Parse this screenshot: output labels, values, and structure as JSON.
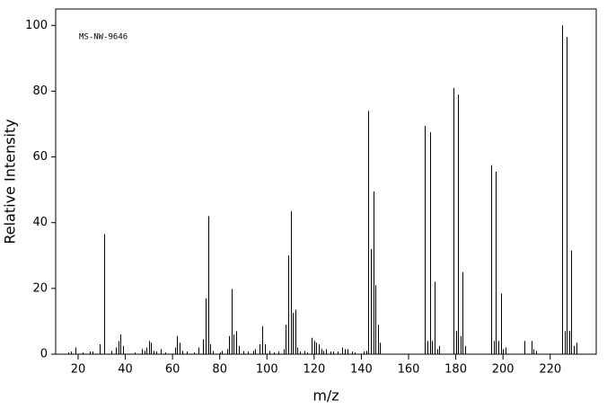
{
  "chart_data": {
    "type": "stem",
    "annotation": "MS-NW-9646",
    "x_label": "m/z",
    "y_label": "Relative Intensity",
    "color": "#000000",
    "xlim": [
      10.5,
      239.5
    ],
    "ylim": [
      0,
      105
    ],
    "xticks": [
      20,
      40,
      60,
      80,
      100,
      120,
      140,
      160,
      180,
      200,
      220
    ],
    "yticks": [
      0,
      20,
      40,
      60,
      80,
      100
    ],
    "x": [
      16,
      17,
      19,
      22,
      25,
      26,
      29,
      31,
      34,
      36,
      37,
      38,
      39,
      44,
      47,
      48,
      49,
      50,
      51,
      52,
      53,
      55,
      57,
      61,
      62,
      63,
      64,
      66,
      69,
      71,
      73,
      74,
      75,
      76,
      77,
      80,
      81,
      83,
      84,
      85,
      86,
      87,
      88,
      90,
      92,
      94,
      95,
      97,
      98,
      99,
      101,
      103,
      105,
      107,
      108,
      109,
      110,
      111,
      112,
      113,
      114,
      116,
      117,
      119,
      120,
      121,
      122,
      123,
      124,
      125,
      127,
      128,
      130,
      132,
      133,
      134,
      136,
      137,
      141,
      142,
      143,
      144,
      145,
      146,
      147,
      148,
      167,
      168,
      169,
      170,
      171,
      172,
      173,
      179,
      180,
      181,
      182,
      183,
      184,
      195,
      196,
      197,
      198,
      199,
      200,
      201,
      209,
      212,
      213,
      214,
      225,
      226,
      227,
      228,
      229,
      230,
      231
    ],
    "values": [
      0.5,
      0.8,
      2,
      0.5,
      0.8,
      0.8,
      3,
      36.5,
      1,
      2,
      4,
      6,
      2.5,
      0.5,
      1.5,
      1,
      2,
      4,
      3.5,
      1,
      0.8,
      1.5,
      0.5,
      2,
      5.5,
      3.5,
      1,
      0.8,
      0.5,
      2,
      4.5,
      17,
      42,
      3,
      1,
      0.5,
      1,
      1.5,
      5.5,
      19.8,
      6,
      7,
      2.5,
      1,
      0.8,
      1,
      1.5,
      3,
      8.5,
      3,
      1,
      0.5,
      0.8,
      1.5,
      9,
      30,
      43.5,
      12.5,
      13.5,
      2,
      0.8,
      1,
      0.5,
      5,
      4,
      3.5,
      3,
      1.5,
      1,
      1.5,
      0.8,
      0.8,
      0.8,
      2,
      1.5,
      1.5,
      0.8,
      0.5,
      0.8,
      1,
      74,
      32,
      49.5,
      21,
      9,
      3.5,
      69.5,
      4,
      67.5,
      4,
      22,
      1.5,
      2.5,
      81,
      7,
      79,
      5.5,
      25,
      2.5,
      57.5,
      4,
      55.5,
      4,
      18.5,
      1.5,
      2,
      4,
      4,
      1.5,
      1,
      100,
      7,
      96.5,
      7,
      31.5,
      2.5,
      3.5
    ]
  }
}
